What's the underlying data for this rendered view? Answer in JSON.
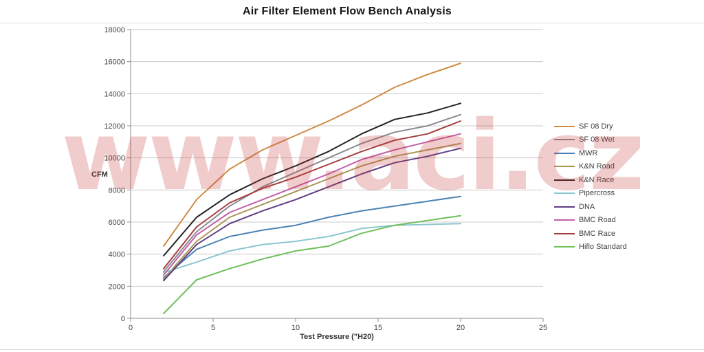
{
  "title": "Air Filter Element Flow Bench Analysis",
  "watermark": "www.aci.cz",
  "chart_data": {
    "type": "line",
    "title": "Air Filter Element Flow Bench Analysis",
    "xlabel": "Test Pressure (\"H20)",
    "ylabel": "CFM",
    "xlim": [
      0,
      25
    ],
    "ylim": [
      0,
      18000
    ],
    "x_ticks": [
      0,
      5,
      10,
      15,
      20,
      25
    ],
    "y_ticks": [
      0,
      2000,
      4000,
      6000,
      8000,
      10000,
      12000,
      14000,
      16000,
      18000
    ],
    "grid": "horizontal",
    "legend_position": "right",
    "x": [
      2,
      4,
      6,
      8,
      10,
      12,
      14,
      16,
      18,
      20
    ],
    "series": [
      {
        "name": "SF 08 Dry",
        "color": "#CE8B44",
        "values": [
          4500,
          7400,
          9300,
          10500,
          11400,
          12300,
          13300,
          14400,
          15200,
          15900
        ]
      },
      {
        "name": "SF 08 Wet",
        "color": "#8A8B93",
        "values": [
          2900,
          5400,
          7000,
          8200,
          9100,
          10000,
          10900,
          11600,
          12000,
          12700
        ]
      },
      {
        "name": "MWR",
        "color": "#4C82B4",
        "values": [
          2550,
          4300,
          5100,
          5500,
          5800,
          6300,
          6700,
          7000,
          7300,
          7600
        ]
      },
      {
        "name": "K&N Road",
        "color": "#A99655",
        "values": [
          2450,
          4800,
          6300,
          7100,
          7900,
          8700,
          9500,
          10100,
          10500,
          10900
        ]
      },
      {
        "name": "K&N Race",
        "color": "#232323",
        "values": [
          3900,
          6300,
          7700,
          8700,
          9500,
          10400,
          11500,
          12400,
          12800,
          13400
        ]
      },
      {
        "name": "Pipercross",
        "color": "#8CC6CE",
        "values": [
          2850,
          3500,
          4200,
          4600,
          4800,
          5100,
          5600,
          5800,
          5850,
          5900
        ]
      },
      {
        "name": "DNA",
        "color": "#5F3D84",
        "values": [
          2350,
          4600,
          5900,
          6700,
          7400,
          8200,
          9000,
          9700,
          10100,
          10600
        ]
      },
      {
        "name": "BMC Road",
        "color": "#C25FA8",
        "values": [
          2700,
          5200,
          6600,
          7400,
          8200,
          9000,
          9900,
          10500,
          11000,
          11500
        ]
      },
      {
        "name": "BMC Race",
        "color": "#A43E3E",
        "values": [
          3100,
          5700,
          7200,
          8100,
          8800,
          9600,
          10400,
          11100,
          11500,
          12300
        ]
      },
      {
        "name": "Hiflo Standard",
        "color": "#6FBF5A",
        "values": [
          300,
          2400,
          3100,
          3700,
          4200,
          4500,
          5300,
          5800,
          6100,
          6400
        ]
      }
    ]
  },
  "layout_colors": {
    "gridline": "#c9c9c9",
    "axis": "#8e8e8e",
    "tick_label": "#3f3f3f"
  }
}
